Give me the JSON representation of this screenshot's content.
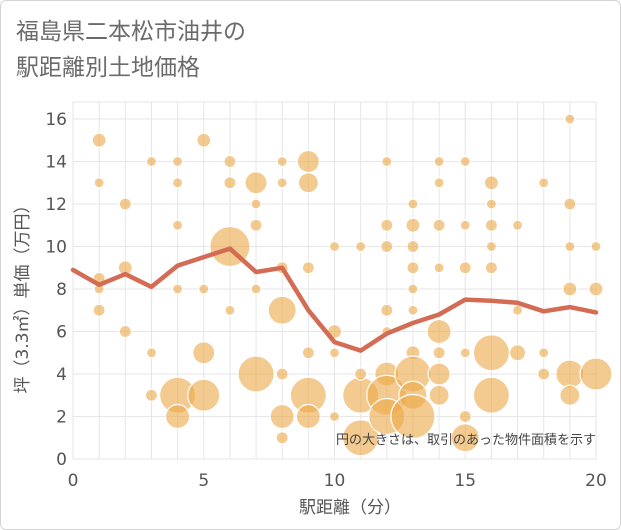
{
  "title_lines": [
    "福島県二本松市油井の",
    "駅距離別土地価格"
  ],
  "chart_data": {
    "type": "scatter",
    "title": "福島県二本松市油井の駅距離別土地価格",
    "xlabel": "駅距離（分）",
    "ylabel": "坪（3.3㎡）単価（万円）",
    "note": "円の大きさは、取引のあった物件面積を示す",
    "xlim": [
      0,
      20
    ],
    "ylim": [
      0,
      16.8
    ],
    "x_ticks": [
      0,
      5,
      10,
      15,
      20
    ],
    "y_ticks": [
      0,
      2,
      4,
      6,
      8,
      10,
      12,
      14,
      16
    ],
    "grid": true,
    "colors": {
      "bubble": "#eba94a",
      "bubble_stroke": "#ffffff",
      "trend": "#d36b55",
      "grid": "#e6e6e6"
    },
    "points": [
      {
        "x": 1,
        "y": 15,
        "s": 7
      },
      {
        "x": 1,
        "y": 13,
        "s": 5
      },
      {
        "x": 1,
        "y": 8.5,
        "s": 6
      },
      {
        "x": 1,
        "y": 8,
        "s": 5
      },
      {
        "x": 1,
        "y": 7,
        "s": 6
      },
      {
        "x": 2,
        "y": 12,
        "s": 6
      },
      {
        "x": 2,
        "y": 9,
        "s": 7
      },
      {
        "x": 2,
        "y": 6,
        "s": 6
      },
      {
        "x": 3,
        "y": 14,
        "s": 5
      },
      {
        "x": 3,
        "y": 5,
        "s": 5
      },
      {
        "x": 3,
        "y": 3,
        "s": 6
      },
      {
        "x": 4,
        "y": 14,
        "s": 5
      },
      {
        "x": 4,
        "y": 13,
        "s": 5
      },
      {
        "x": 4,
        "y": 11,
        "s": 5
      },
      {
        "x": 4,
        "y": 8,
        "s": 5
      },
      {
        "x": 4,
        "y": 3,
        "s": 18
      },
      {
        "x": 4,
        "y": 2,
        "s": 12
      },
      {
        "x": 5,
        "y": 15,
        "s": 7
      },
      {
        "x": 5,
        "y": 8,
        "s": 5
      },
      {
        "x": 5,
        "y": 5,
        "s": 11
      },
      {
        "x": 5,
        "y": 3,
        "s": 16
      },
      {
        "x": 6,
        "y": 14,
        "s": 6
      },
      {
        "x": 6,
        "y": 13,
        "s": 6
      },
      {
        "x": 6,
        "y": 10,
        "s": 20
      },
      {
        "x": 6,
        "y": 7,
        "s": 5
      },
      {
        "x": 7,
        "y": 13,
        "s": 11
      },
      {
        "x": 7,
        "y": 12,
        "s": 5
      },
      {
        "x": 7,
        "y": 11,
        "s": 6
      },
      {
        "x": 7,
        "y": 8,
        "s": 5
      },
      {
        "x": 7,
        "y": 4,
        "s": 18
      },
      {
        "x": 8,
        "y": 14,
        "s": 5
      },
      {
        "x": 8,
        "y": 13,
        "s": 5
      },
      {
        "x": 8,
        "y": 9,
        "s": 6
      },
      {
        "x": 8,
        "y": 7,
        "s": 14
      },
      {
        "x": 8,
        "y": 4,
        "s": 6
      },
      {
        "x": 8,
        "y": 2,
        "s": 12
      },
      {
        "x": 8,
        "y": 1,
        "s": 6
      },
      {
        "x": 9,
        "y": 14,
        "s": 11
      },
      {
        "x": 9,
        "y": 13,
        "s": 10
      },
      {
        "x": 9,
        "y": 9,
        "s": 6
      },
      {
        "x": 9,
        "y": 5,
        "s": 6
      },
      {
        "x": 9,
        "y": 3,
        "s": 18
      },
      {
        "x": 9,
        "y": 2,
        "s": 12
      },
      {
        "x": 10,
        "y": 10,
        "s": 5
      },
      {
        "x": 10,
        "y": 6,
        "s": 7
      },
      {
        "x": 10,
        "y": 5,
        "s": 5
      },
      {
        "x": 10,
        "y": 2,
        "s": 5
      },
      {
        "x": 11,
        "y": 10,
        "s": 5
      },
      {
        "x": 11,
        "y": 3,
        "s": 18
      },
      {
        "x": 11,
        "y": 1,
        "s": 18
      },
      {
        "x": 11,
        "y": 4,
        "s": 6
      },
      {
        "x": 12,
        "y": 14,
        "s": 5
      },
      {
        "x": 12,
        "y": 11,
        "s": 6
      },
      {
        "x": 12,
        "y": 10,
        "s": 6
      },
      {
        "x": 12,
        "y": 7,
        "s": 6
      },
      {
        "x": 12,
        "y": 6,
        "s": 5
      },
      {
        "x": 12,
        "y": 4,
        "s": 12
      },
      {
        "x": 12,
        "y": 3,
        "s": 20
      },
      {
        "x": 12,
        "y": 2,
        "s": 18
      },
      {
        "x": 13,
        "y": 12,
        "s": 5
      },
      {
        "x": 13,
        "y": 11,
        "s": 7
      },
      {
        "x": 13,
        "y": 10,
        "s": 6
      },
      {
        "x": 13,
        "y": 9,
        "s": 6
      },
      {
        "x": 13,
        "y": 8,
        "s": 5
      },
      {
        "x": 13,
        "y": 7,
        "s": 5
      },
      {
        "x": 13,
        "y": 5,
        "s": 7
      },
      {
        "x": 13,
        "y": 4,
        "s": 18
      },
      {
        "x": 13,
        "y": 3,
        "s": 14
      },
      {
        "x": 13,
        "y": 2,
        "s": 22
      },
      {
        "x": 14,
        "y": 14,
        "s": 5
      },
      {
        "x": 14,
        "y": 13,
        "s": 5
      },
      {
        "x": 14,
        "y": 11,
        "s": 6
      },
      {
        "x": 14,
        "y": 9,
        "s": 5
      },
      {
        "x": 14,
        "y": 6,
        "s": 12
      },
      {
        "x": 14,
        "y": 5,
        "s": 6
      },
      {
        "x": 14,
        "y": 4,
        "s": 11
      },
      {
        "x": 14,
        "y": 3,
        "s": 10
      },
      {
        "x": 15,
        "y": 14,
        "s": 5
      },
      {
        "x": 15,
        "y": 11,
        "s": 5
      },
      {
        "x": 15,
        "y": 9,
        "s": 6
      },
      {
        "x": 15,
        "y": 5,
        "s": 5
      },
      {
        "x": 15,
        "y": 2,
        "s": 6
      },
      {
        "x": 15,
        "y": 1,
        "s": 14
      },
      {
        "x": 16,
        "y": 13,
        "s": 7
      },
      {
        "x": 16,
        "y": 12,
        "s": 5
      },
      {
        "x": 16,
        "y": 11,
        "s": 6
      },
      {
        "x": 16,
        "y": 10,
        "s": 5
      },
      {
        "x": 16,
        "y": 9,
        "s": 6
      },
      {
        "x": 16,
        "y": 5,
        "s": 18
      },
      {
        "x": 16,
        "y": 3,
        "s": 18
      },
      {
        "x": 17,
        "y": 11,
        "s": 5
      },
      {
        "x": 17,
        "y": 7,
        "s": 5
      },
      {
        "x": 17,
        "y": 5,
        "s": 8
      },
      {
        "x": 18,
        "y": 13,
        "s": 5
      },
      {
        "x": 18,
        "y": 5,
        "s": 5
      },
      {
        "x": 18,
        "y": 4,
        "s": 6
      },
      {
        "x": 19,
        "y": 16,
        "s": 5
      },
      {
        "x": 19,
        "y": 12,
        "s": 6
      },
      {
        "x": 19,
        "y": 10,
        "s": 5
      },
      {
        "x": 19,
        "y": 8,
        "s": 7
      },
      {
        "x": 19,
        "y": 4,
        "s": 14
      },
      {
        "x": 19,
        "y": 3,
        "s": 10
      },
      {
        "x": 20,
        "y": 10,
        "s": 5
      },
      {
        "x": 20,
        "y": 8,
        "s": 7
      },
      {
        "x": 20,
        "y": 4,
        "s": 16
      }
    ],
    "trend": [
      {
        "x": 0,
        "y": 8.9
      },
      {
        "x": 1,
        "y": 8.2
      },
      {
        "x": 2,
        "y": 8.7
      },
      {
        "x": 3,
        "y": 8.1
      },
      {
        "x": 4,
        "y": 9.1
      },
      {
        "x": 5,
        "y": 9.5
      },
      {
        "x": 6,
        "y": 9.9
      },
      {
        "x": 7,
        "y": 8.8
      },
      {
        "x": 8,
        "y": 9.0
      },
      {
        "x": 9,
        "y": 7.0
      },
      {
        "x": 10,
        "y": 5.5
      },
      {
        "x": 11,
        "y": 5.1
      },
      {
        "x": 12,
        "y": 5.9
      },
      {
        "x": 13,
        "y": 6.4
      },
      {
        "x": 14,
        "y": 6.8
      },
      {
        "x": 15,
        "y": 7.5
      },
      {
        "x": 16,
        "y": 7.45
      },
      {
        "x": 17,
        "y": 7.35
      },
      {
        "x": 18,
        "y": 6.95
      },
      {
        "x": 19,
        "y": 7.15
      },
      {
        "x": 20,
        "y": 6.9
      }
    ]
  }
}
